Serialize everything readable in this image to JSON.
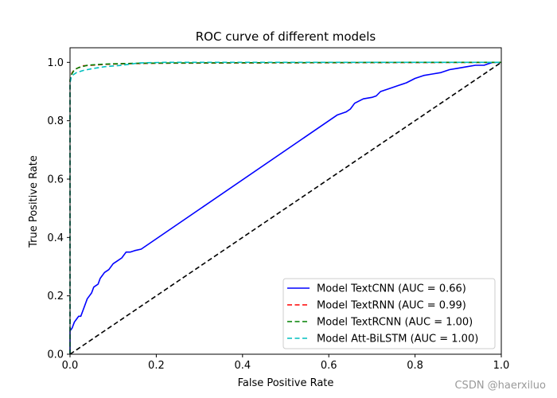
{
  "chart_data": {
    "type": "line",
    "title": "ROC curve of different models",
    "xlabel": "False Positive Rate",
    "ylabel": "True Positive Rate",
    "xlim": [
      0,
      1
    ],
    "ylim": [
      0,
      1.05
    ],
    "xticks": [
      0,
      0.2,
      0.4,
      0.6,
      0.8,
      1.0
    ],
    "xtick_labels": [
      "0.0",
      "0.2",
      "0.4",
      "0.6",
      "0.8",
      "1.0"
    ],
    "yticks": [
      0,
      0.2,
      0.4,
      0.6,
      0.8,
      1.0
    ],
    "ytick_labels": [
      "0.0",
      "0.2",
      "0.4",
      "0.6",
      "0.8",
      "1.0"
    ],
    "grid": false,
    "legend_position": "lower-right",
    "series": [
      {
        "name": "Model TextCNN (AUC = 0.66)",
        "color": "#0000ff",
        "style": "solid",
        "x": [
          0,
          0,
          0.005,
          0.01,
          0.015,
          0.02,
          0.025,
          0.03,
          0.035,
          0.04,
          0.045,
          0.05,
          0.055,
          0.06,
          0.065,
          0.07,
          0.075,
          0.08,
          0.09,
          0.1,
          0.11,
          0.12,
          0.13,
          0.14,
          0.15,
          0.165,
          0.62,
          0.63,
          0.64,
          0.65,
          0.66,
          0.68,
          0.7,
          0.71,
          0.72,
          0.74,
          0.76,
          0.78,
          0.8,
          0.82,
          0.84,
          0.86,
          0.88,
          0.9,
          0.92,
          0.94,
          0.96,
          0.97,
          0.98,
          1.0
        ],
        "y": [
          0,
          0.08,
          0.09,
          0.11,
          0.12,
          0.13,
          0.13,
          0.15,
          0.17,
          0.19,
          0.2,
          0.21,
          0.23,
          0.235,
          0.24,
          0.26,
          0.27,
          0.28,
          0.29,
          0.31,
          0.32,
          0.33,
          0.35,
          0.35,
          0.355,
          0.36,
          0.82,
          0.825,
          0.83,
          0.84,
          0.86,
          0.875,
          0.88,
          0.885,
          0.9,
          0.91,
          0.92,
          0.93,
          0.945,
          0.955,
          0.96,
          0.965,
          0.975,
          0.98,
          0.985,
          0.99,
          0.99,
          0.995,
          1.0,
          1.0
        ]
      },
      {
        "name": "Model TextRNN (AUC = 0.99)",
        "color": "#ff0000",
        "style": "dashed",
        "x": [
          0,
          0,
          0.002,
          0.005,
          0.01,
          0.02,
          0.03,
          0.05,
          0.08,
          0.12,
          0.2,
          0.4,
          0.7,
          1.0
        ],
        "y": [
          0,
          0.93,
          0.955,
          0.965,
          0.975,
          0.982,
          0.988,
          0.99,
          0.993,
          0.995,
          0.997,
          0.998,
          0.999,
          1.0
        ]
      },
      {
        "name": "Model TextRCNN (AUC = 1.00)",
        "color": "#008000",
        "style": "dashed",
        "x": [
          0,
          0,
          0.002,
          0.005,
          0.01,
          0.02,
          0.04,
          0.07,
          0.1,
          0.16,
          0.25,
          0.5,
          0.8,
          1.0
        ],
        "y": [
          0,
          0.94,
          0.955,
          0.962,
          0.975,
          0.982,
          0.99,
          0.993,
          0.995,
          0.997,
          0.998,
          0.999,
          1.0,
          1.0
        ]
      },
      {
        "name": "Model Att-BiLSTM (AUC = 1.00)",
        "color": "#00bfbf",
        "style": "dashed",
        "x": [
          0,
          0,
          0.003,
          0.008,
          0.015,
          0.03,
          0.05,
          0.08,
          0.12,
          0.16,
          0.22,
          0.4,
          0.7,
          1.0
        ],
        "y": [
          0,
          0.93,
          0.95,
          0.958,
          0.965,
          0.972,
          0.978,
          0.985,
          0.99,
          0.998,
          1.0,
          1.0,
          1.0,
          1.0
        ]
      },
      {
        "name": "",
        "color": "#000000",
        "style": "dashed",
        "x": [
          0,
          1
        ],
        "y": [
          0,
          1
        ]
      }
    ]
  },
  "watermark": "CSDN @haerxiluo"
}
